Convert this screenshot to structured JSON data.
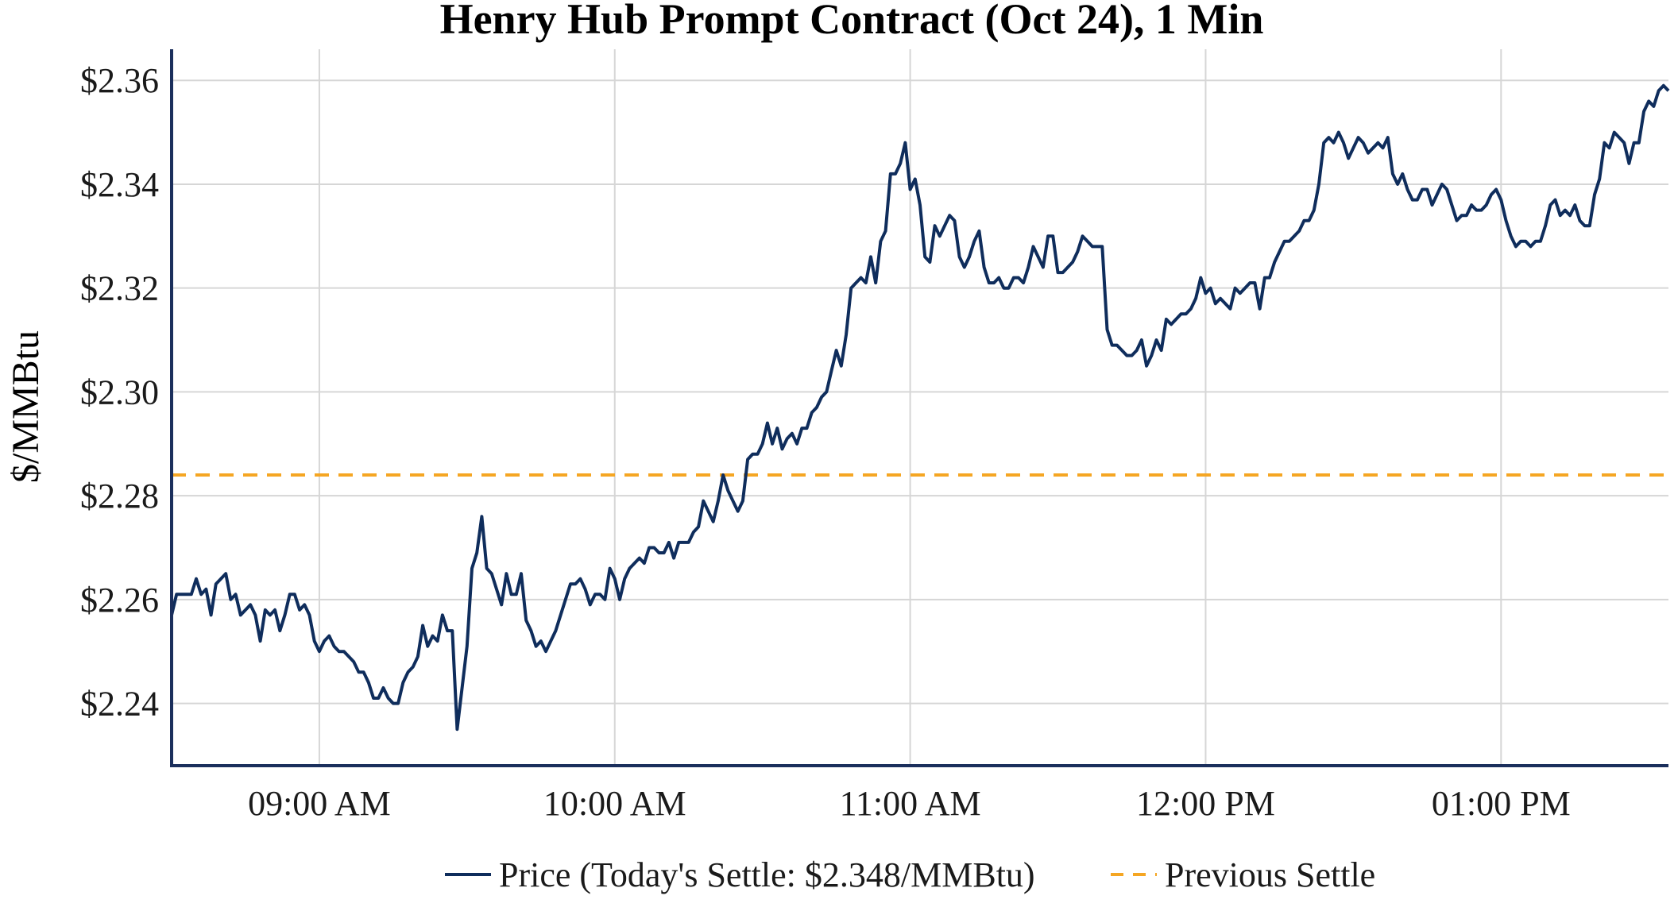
{
  "chart_data": {
    "type": "line",
    "title": "Henry Hub Prompt Contract (Oct 24), 1 Min",
    "ylabel": "$/MMBtu",
    "xlabel": "",
    "ylim": [
      2.228,
      2.366
    ],
    "y_ticks": [
      "$2.24",
      "$2.26",
      "$2.28",
      "$2.30",
      "$2.32",
      "$2.34",
      "$2.36"
    ],
    "y_tick_values": [
      2.24,
      2.26,
      2.28,
      2.3,
      2.32,
      2.34,
      2.36
    ],
    "x_range": [
      "08:30",
      "13:34"
    ],
    "x_ticks": [
      "09:00 AM",
      "10:00 AM",
      "11:00 AM",
      "12:00 PM",
      "01:00 PM"
    ],
    "x_tick_values": [
      "09:00",
      "10:00",
      "11:00",
      "12:00",
      "13:00"
    ],
    "grid": true,
    "legend_position": "bottom-center",
    "series": [
      {
        "name": "Price (Today's Settle: $2.348/MMBtu)",
        "color": "#0f2d5c",
        "style": "solid",
        "x": [
          "08:30",
          "08:31",
          "08:32",
          "08:33",
          "08:34",
          "08:35",
          "08:36",
          "08:37",
          "08:38",
          "08:39",
          "08:40",
          "08:41",
          "08:42",
          "08:43",
          "08:44",
          "08:45",
          "08:46",
          "08:47",
          "08:48",
          "08:49",
          "08:50",
          "08:51",
          "08:52",
          "08:53",
          "08:54",
          "08:55",
          "08:56",
          "08:57",
          "08:58",
          "08:59",
          "09:00",
          "09:01",
          "09:02",
          "09:03",
          "09:04",
          "09:05",
          "09:06",
          "09:07",
          "09:08",
          "09:09",
          "09:10",
          "09:11",
          "09:12",
          "09:13",
          "09:14",
          "09:15",
          "09:16",
          "09:17",
          "09:18",
          "09:19",
          "09:20",
          "09:21",
          "09:22",
          "09:23",
          "09:24",
          "09:25",
          "09:26",
          "09:27",
          "09:28",
          "09:29",
          "09:30",
          "09:31",
          "09:32",
          "09:33",
          "09:34",
          "09:35",
          "09:36",
          "09:37",
          "09:38",
          "09:39",
          "09:40",
          "09:41",
          "09:42",
          "09:43",
          "09:44",
          "09:45",
          "09:46",
          "09:47",
          "09:48",
          "09:49",
          "09:50",
          "09:51",
          "09:52",
          "09:53",
          "09:54",
          "09:55",
          "09:56",
          "09:57",
          "09:58",
          "09:59",
          "10:00",
          "10:01",
          "10:02",
          "10:03",
          "10:04",
          "10:05",
          "10:06",
          "10:07",
          "10:08",
          "10:09",
          "10:10",
          "10:11",
          "10:12",
          "10:13",
          "10:14",
          "10:15",
          "10:16",
          "10:17",
          "10:18",
          "10:19",
          "10:20",
          "10:21",
          "10:22",
          "10:23",
          "10:24",
          "10:25",
          "10:26",
          "10:27",
          "10:28",
          "10:29",
          "10:30",
          "10:31",
          "10:32",
          "10:33",
          "10:34",
          "10:35",
          "10:36",
          "10:37",
          "10:38",
          "10:39",
          "10:40",
          "10:41",
          "10:42",
          "10:43",
          "10:44",
          "10:45",
          "10:46",
          "10:47",
          "10:48",
          "10:49",
          "10:50",
          "10:51",
          "10:52",
          "10:53",
          "10:54",
          "10:55",
          "10:56",
          "10:57",
          "10:58",
          "10:59",
          "11:00",
          "11:01",
          "11:02",
          "11:03",
          "11:04",
          "11:05",
          "11:06",
          "11:07",
          "11:08",
          "11:09",
          "11:10",
          "11:11",
          "11:12",
          "11:13",
          "11:14",
          "11:15",
          "11:16",
          "11:17",
          "11:18",
          "11:19",
          "11:20",
          "11:21",
          "11:22",
          "11:23",
          "11:24",
          "11:25",
          "11:26",
          "11:27",
          "11:28",
          "11:29",
          "11:30",
          "11:31",
          "11:32",
          "11:33",
          "11:34",
          "11:35",
          "11:36",
          "11:37",
          "11:38",
          "11:39",
          "11:40",
          "11:41",
          "11:42",
          "11:43",
          "11:44",
          "11:45",
          "11:46",
          "11:47",
          "11:48",
          "11:49",
          "11:50",
          "11:51",
          "11:52",
          "11:53",
          "11:54",
          "11:55",
          "11:56",
          "11:57",
          "11:58",
          "11:59",
          "12:00",
          "12:01",
          "12:02",
          "12:03",
          "12:04",
          "12:05",
          "12:06",
          "12:07",
          "12:08",
          "12:09",
          "12:10",
          "12:11",
          "12:12",
          "12:13",
          "12:14",
          "12:15",
          "12:16",
          "12:17",
          "12:18",
          "12:19",
          "12:20",
          "12:21",
          "12:22",
          "12:23",
          "12:24",
          "12:25",
          "12:26",
          "12:27",
          "12:28",
          "12:29",
          "12:30",
          "12:31",
          "12:32",
          "12:33",
          "12:34",
          "12:35",
          "12:36",
          "12:37",
          "12:38",
          "12:39",
          "12:40",
          "12:41",
          "12:42",
          "12:43",
          "12:44",
          "12:45",
          "12:46",
          "12:47",
          "12:48",
          "12:49",
          "12:50",
          "12:51",
          "12:52",
          "12:53",
          "12:54",
          "12:55",
          "12:56",
          "12:57",
          "12:58",
          "12:59",
          "13:00",
          "13:01",
          "13:02",
          "13:03",
          "13:04",
          "13:05",
          "13:06",
          "13:07",
          "13:08",
          "13:09",
          "13:10",
          "13:11",
          "13:12",
          "13:13",
          "13:14",
          "13:15",
          "13:16",
          "13:17",
          "13:18",
          "13:19",
          "13:20",
          "13:21",
          "13:22",
          "13:23",
          "13:24",
          "13:25",
          "13:26",
          "13:27",
          "13:28",
          "13:29",
          "13:30",
          "13:31",
          "13:32",
          "13:33",
          "13:34"
        ],
        "values": [
          2.257,
          2.261,
          2.261,
          2.261,
          2.261,
          2.264,
          2.261,
          2.262,
          2.257,
          2.263,
          2.264,
          2.265,
          2.26,
          2.261,
          2.257,
          2.258,
          2.259,
          2.257,
          2.252,
          2.258,
          2.257,
          2.258,
          2.254,
          2.257,
          2.261,
          2.261,
          2.258,
          2.259,
          2.257,
          2.252,
          2.25,
          2.252,
          2.253,
          2.251,
          2.25,
          2.25,
          2.249,
          2.248,
          2.246,
          2.246,
          2.244,
          2.241,
          2.241,
          2.243,
          2.241,
          2.24,
          2.24,
          2.244,
          2.246,
          2.247,
          2.249,
          2.255,
          2.251,
          2.253,
          2.252,
          2.257,
          2.254,
          2.254,
          2.235,
          2.243,
          2.251,
          2.266,
          2.269,
          2.276,
          2.266,
          2.265,
          2.262,
          2.259,
          2.265,
          2.261,
          2.261,
          2.265,
          2.256,
          2.254,
          2.251,
          2.252,
          2.25,
          2.252,
          2.254,
          2.257,
          2.26,
          2.263,
          2.263,
          2.264,
          2.262,
          2.259,
          2.261,
          2.261,
          2.26,
          2.266,
          2.264,
          2.26,
          2.264,
          2.266,
          2.267,
          2.268,
          2.267,
          2.27,
          2.27,
          2.269,
          2.269,
          2.271,
          2.268,
          2.271,
          2.271,
          2.271,
          2.273,
          2.274,
          2.279,
          2.277,
          2.275,
          2.279,
          2.284,
          2.281,
          2.279,
          2.277,
          2.279,
          2.287,
          2.288,
          2.288,
          2.29,
          2.294,
          2.29,
          2.293,
          2.289,
          2.291,
          2.292,
          2.29,
          2.293,
          2.293,
          2.296,
          2.297,
          2.299,
          2.3,
          2.304,
          2.308,
          2.305,
          2.311,
          2.32,
          2.321,
          2.322,
          2.321,
          2.326,
          2.321,
          2.329,
          2.331,
          2.342,
          2.342,
          2.344,
          2.348,
          2.339,
          2.341,
          2.336,
          2.326,
          2.325,
          2.332,
          2.33,
          2.332,
          2.334,
          2.333,
          2.326,
          2.324,
          2.326,
          2.329,
          2.331,
          2.324,
          2.321,
          2.321,
          2.322,
          2.32,
          2.32,
          2.322,
          2.322,
          2.321,
          2.324,
          2.328,
          2.326,
          2.324,
          2.33,
          2.33,
          2.323,
          2.323,
          2.324,
          2.325,
          2.327,
          2.33,
          2.329,
          2.328,
          2.328,
          2.328,
          2.312,
          2.309,
          2.309,
          2.308,
          2.307,
          2.307,
          2.308,
          2.31,
          2.305,
          2.307,
          2.31,
          2.308,
          2.314,
          2.313,
          2.314,
          2.315,
          2.315,
          2.316,
          2.318,
          2.322,
          2.319,
          2.32,
          2.317,
          2.318,
          2.317,
          2.316,
          2.32,
          2.319,
          2.32,
          2.321,
          2.321,
          2.316,
          2.322,
          2.322,
          2.325,
          2.327,
          2.329,
          2.329,
          2.33,
          2.331,
          2.333,
          2.333,
          2.335,
          2.34,
          2.348,
          2.349,
          2.348,
          2.35,
          2.348,
          2.345,
          2.347,
          2.349,
          2.348,
          2.346,
          2.347,
          2.348,
          2.347,
          2.349,
          2.342,
          2.34,
          2.342,
          2.339,
          2.337,
          2.337,
          2.339,
          2.339,
          2.336,
          2.338,
          2.34,
          2.339,
          2.336,
          2.333,
          2.334,
          2.334,
          2.336,
          2.335,
          2.335,
          2.336,
          2.338,
          2.339,
          2.337,
          2.333,
          2.33,
          2.328,
          2.329,
          2.329,
          2.328,
          2.329,
          2.329,
          2.332,
          2.336,
          2.337,
          2.334,
          2.335,
          2.334,
          2.336,
          2.333,
          2.332,
          2.332,
          2.338,
          2.341,
          2.348,
          2.347,
          2.35,
          2.349,
          2.348,
          2.344,
          2.348,
          2.348,
          2.354,
          2.356,
          2.355,
          2.358,
          2.359,
          2.358
        ]
      },
      {
        "name": "Previous Settle",
        "color": "#f5a623",
        "style": "dashed",
        "constant": 2.284
      }
    ]
  }
}
